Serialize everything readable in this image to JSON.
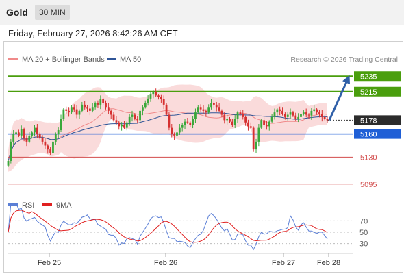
{
  "header": {
    "instrument": "Gold",
    "interval": "30 MIN"
  },
  "timestamp": "Friday, February 27, 2026 8:42:26 AM CET",
  "legend": {
    "items": [
      {
        "label": "MA 20 + Bollinger Bands",
        "color": "#f08a8a"
      },
      {
        "label": "MA 50",
        "color": "#2f5597"
      }
    ],
    "credit": "Research © 2026 Trading Central"
  },
  "rsi_legend": {
    "items": [
      {
        "label": "RSI",
        "color": "#5b7fd6"
      },
      {
        "label": "9MA",
        "color": "#e02020"
      }
    ]
  },
  "chart_data": [
    {
      "type": "candlestick",
      "y_range": [
        5085,
        5245
      ],
      "x_ticks": [
        "Feb 25",
        "Feb 26",
        "Feb 27",
        "Feb 28"
      ],
      "last_price": 5178,
      "levels": [
        {
          "value": 5235,
          "label": "5235",
          "kind": "resistance",
          "color": "#4a9e0d"
        },
        {
          "value": 5215,
          "label": "5215",
          "kind": "resistance",
          "color": "#4a9e0d"
        },
        {
          "value": 5160,
          "label": "5160",
          "kind": "pivot",
          "color": "#1f5fd6"
        },
        {
          "value": 5130,
          "label": "5130",
          "kind": "support",
          "color": "#d24b4b"
        },
        {
          "value": 5095,
          "label": "5095",
          "kind": "support",
          "color": "#d24b4b"
        }
      ],
      "forecast_arrow": {
        "from": 5178,
        "to": 5235
      },
      "close": [
        5125,
        5150,
        5160,
        5162,
        5158,
        5166,
        5155,
        5150,
        5158,
        5162,
        5168,
        5160,
        5155,
        5150,
        5145,
        5140,
        5135,
        5150,
        5160,
        5165,
        5180,
        5192,
        5190,
        5188,
        5195,
        5192,
        5185,
        5190,
        5198,
        5195,
        5193,
        5190,
        5195,
        5200,
        5198,
        5205,
        5200,
        5195,
        5190,
        5185,
        5178,
        5175,
        5170,
        5172,
        5168,
        5175,
        5182,
        5185,
        5180,
        5178,
        5190,
        5195,
        5200,
        5206,
        5212,
        5214,
        5210,
        5208,
        5205,
        5198,
        5185,
        5168,
        5160,
        5158,
        5162,
        5168,
        5172,
        5176,
        5175,
        5172,
        5180,
        5188,
        5195,
        5192,
        5190,
        5188,
        5195,
        5200,
        5198,
        5195,
        5190,
        5185,
        5178,
        5180,
        5176,
        5172,
        5180,
        5188,
        5186,
        5182,
        5175,
        5170,
        5168,
        5140,
        5150,
        5168,
        5178,
        5172,
        5170,
        5176,
        5182,
        5188,
        5192,
        5190,
        5186,
        5182,
        5185,
        5188,
        5184,
        5180,
        5182,
        5186,
        5188,
        5185,
        5184,
        5190,
        5192,
        5188,
        5186,
        5182,
        5180,
        5178
      ],
      "bollinger": {
        "ma": 20,
        "band_color": "#f9d5d5",
        "ma_color": "#f08a8a"
      },
      "ma50": {
        "color": "#2f5597"
      }
    },
    {
      "type": "line",
      "name": "RSI",
      "y_range": [
        20,
        80
      ],
      "y_ticks": [
        30,
        50,
        70
      ],
      "series": [
        {
          "name": "RSI",
          "color": "#5b7fd6"
        },
        {
          "name": "9MA",
          "color": "#e02020"
        }
      ]
    }
  ]
}
